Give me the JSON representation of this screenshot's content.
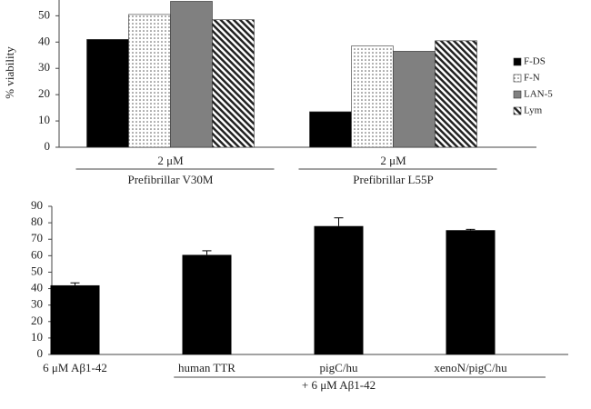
{
  "chart_data": [
    {
      "type": "grouped_bar",
      "y_label": "% viability",
      "categories": [
        "Prefibrillar V30M",
        "Prefibrillar L55P"
      ],
      "concentration_labels": [
        "2 μM",
        "2 μM"
      ],
      "series": [
        {
          "name": "F-DS",
          "color": "#000000",
          "pattern": "solid",
          "values": [
            41,
            13.5
          ]
        },
        {
          "name": "F-N",
          "color": "#ffffff",
          "pattern": "dots",
          "values": [
            50.5,
            38.5
          ]
        },
        {
          "name": "LAN-5",
          "color": "#808080",
          "pattern": "solid",
          "values": [
            55.5,
            36.5
          ]
        },
        {
          "name": "Lym",
          "color": "#ffffff",
          "pattern": "stripes",
          "values": [
            48.5,
            40.5
          ]
        }
      ],
      "ylim": [
        0,
        56
      ],
      "yticks": [
        0,
        10,
        20,
        30,
        40,
        50
      ],
      "legend": "right"
    },
    {
      "type": "bar",
      "categories": [
        "6 μM Aβ1-42",
        "human TTR",
        "pigC/hu",
        "xenoN/pigC/hu"
      ],
      "group_label": "+ 6 μM Aβ1-42",
      "values": [
        42,
        60.5,
        78,
        75.5
      ],
      "errors": [
        1.5,
        2.5,
        5,
        0.5
      ],
      "color": "#000000",
      "ylim": [
        0,
        90
      ],
      "yticks": [
        0,
        10,
        20,
        30,
        40,
        50,
        60,
        70,
        80,
        90
      ]
    }
  ]
}
